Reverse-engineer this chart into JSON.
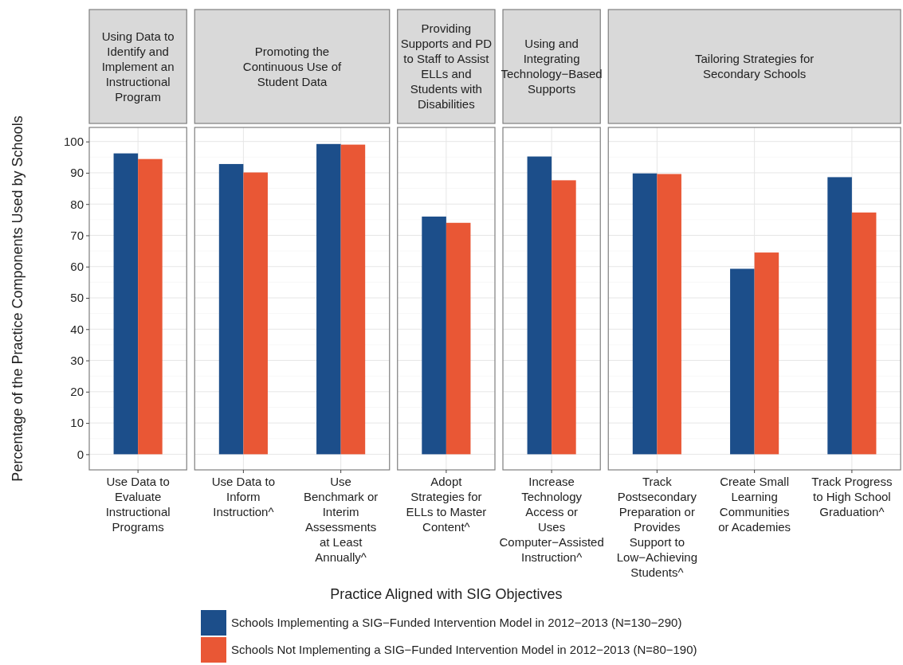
{
  "chart_data": [
    {
      "type": "bar",
      "title": "Using Data to Identify and Implement an Instructional Program",
      "ylabel": "Percentage of the Practice Components Used by Schools",
      "categories": [
        "Use Data to Evaluate Instructional Programs"
      ],
      "series": [
        {
          "name": "Schools Implementing a SIG−Funded Intervention Model in 2012−2013 (N=130−290)",
          "color": "#1c4e8a",
          "values": [
            96.2
          ]
        },
        {
          "name": "Schools Not Implementing a SIG−Funded Intervention Model in 2012−2013 (N=80−190)",
          "color": "#e95735",
          "values": [
            94.4
          ]
        }
      ],
      "ylim": [
        -5,
        104.5
      ],
      "yticks": [
        0,
        10,
        20,
        30,
        40,
        50,
        60,
        70,
        80,
        90,
        100
      ],
      "grid": true,
      "legend": "bottom"
    },
    {
      "type": "bar",
      "title": "Promoting the Continuous Use of Student Data",
      "categories": [
        "Use Data to Inform Instruction^",
        "Use Benchmark or Interim Assessments at Least Annually^"
      ],
      "series": [
        {
          "color": "#1c4e8a",
          "values": [
            92.8,
            99.2
          ]
        },
        {
          "color": "#e95735",
          "values": [
            90.1,
            99.0
          ]
        }
      ],
      "ylim": [
        -5,
        104.5
      ],
      "yticks": [
        0,
        10,
        20,
        30,
        40,
        50,
        60,
        70,
        80,
        90,
        100
      ],
      "grid": true,
      "tick_labels": "x"
    },
    {
      "type": "bar",
      "title": "Providing Supports and PD to Staff to Assist ELLs and Students with Disabilities",
      "xlabel": "Practice Aligned with SIG Objectives",
      "categories": [
        "Adopt Strategies for ELLs to Master Content^"
      ],
      "series": [
        {
          "color": "#1c4e8a",
          "values": [
            76.0
          ]
        },
        {
          "color": "#e95735",
          "values": [
            74.0
          ]
        }
      ],
      "ylim": [
        -5,
        104.5
      ],
      "yticks": [
        0,
        10,
        20,
        30,
        40,
        50,
        60,
        70,
        80,
        90,
        100
      ],
      "grid": true,
      "tick_labels": "x"
    },
    {
      "type": "bar",
      "title": "Using and Integrating Technology−Based Supports",
      "categories": [
        "Increase Technology Access or Uses Computer−Assisted Instruction^"
      ],
      "series": [
        {
          "color": "#1c4e8a",
          "values": [
            95.2
          ]
        },
        {
          "color": "#e95735",
          "values": [
            87.6
          ]
        }
      ],
      "ylim": [
        -5,
        104.5
      ],
      "yticks": [
        0,
        10,
        20,
        30,
        40,
        50,
        60,
        70,
        80,
        90,
        100
      ],
      "grid": true,
      "tick_labels": "x"
    },
    {
      "type": "bar",
      "title": "Tailoring Strategies for Secondary Schools",
      "categories": [
        "Track Postsecondary Preparation or Provides Support to Low−Achieving Students^",
        "Create Small Learning Communities or Academies",
        "Track Progress to High School Graduation^"
      ],
      "series": [
        {
          "color": "#1c4e8a",
          "values": [
            89.8,
            59.3,
            88.6
          ]
        },
        {
          "color": "#e95735",
          "values": [
            89.6,
            64.5,
            77.3
          ]
        }
      ],
      "ylim": [
        -5,
        104.5
      ],
      "yticks": [
        0,
        10,
        20,
        30,
        40,
        50,
        60,
        70,
        80,
        90,
        100
      ],
      "grid": true,
      "tick_labels": "x"
    }
  ]
}
